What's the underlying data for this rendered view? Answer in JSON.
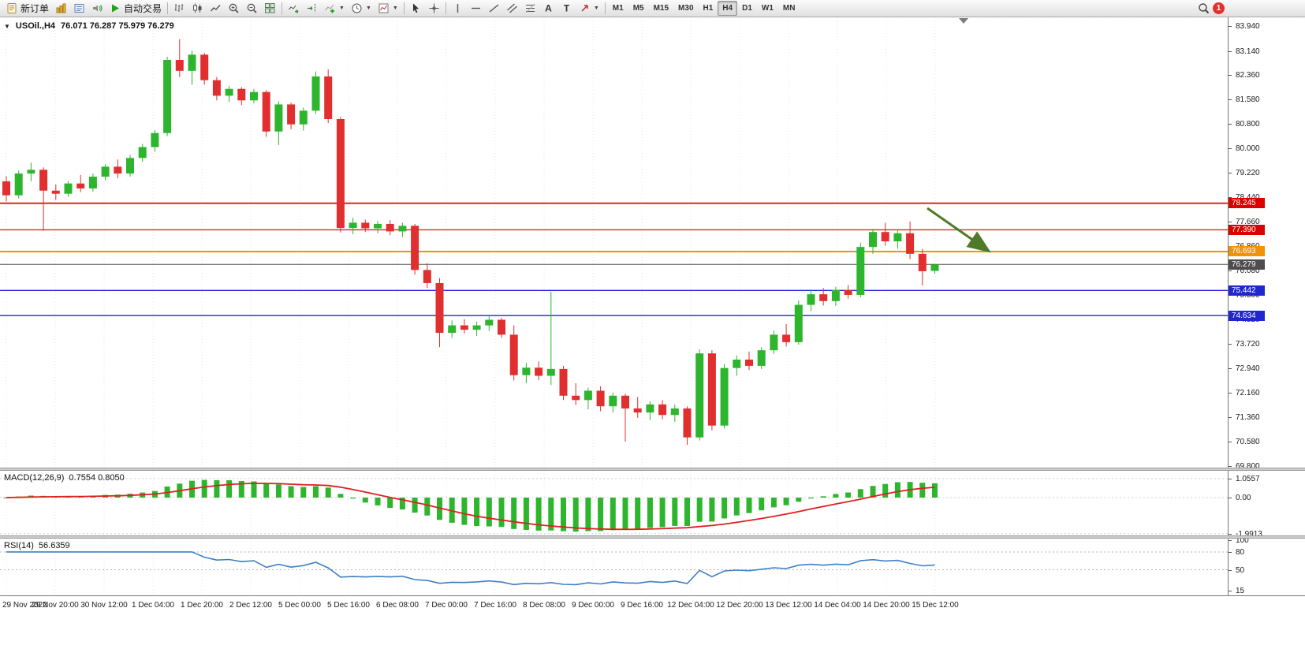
{
  "toolbar": {
    "new_order_label": "新订单",
    "auto_trading_label": "自动交易",
    "timeframes": [
      "M1",
      "M5",
      "M15",
      "M30",
      "H1",
      "H4",
      "D1",
      "W1",
      "MN"
    ],
    "active_timeframe": "H4",
    "notification_count": "1"
  },
  "chart": {
    "symbol_title": "USOil.,H4",
    "ohlc_text": "76.071 76.287 75.979 76.279",
    "price_axis": [
      "83.940",
      "83.140",
      "82.360",
      "81.580",
      "80.800",
      "80.000",
      "79.220",
      "78.440",
      "77.660",
      "76.860",
      "76.080",
      "75.300",
      "74.520",
      "73.720",
      "72.940",
      "72.160",
      "71.360",
      "70.580",
      "69.800"
    ],
    "time_axis": [
      "29 Nov 2022",
      "29 Nov 20:00",
      "30 Nov 12:00",
      "1 Dec 04:00",
      "1 Dec 20:00",
      "2 Dec 12:00",
      "5 Dec 00:00",
      "5 Dec 16:00",
      "6 Dec 08:00",
      "7 Dec 00:00",
      "7 Dec 16:00",
      "8 Dec 08:00",
      "9 Dec 00:00",
      "9 Dec 16:00",
      "12 Dec 04:00",
      "12 Dec 20:00",
      "13 Dec 12:00",
      "14 Dec 04:00",
      "14 Dec 20:00",
      "15 Dec 12:00"
    ],
    "levels": [
      {
        "price": 78.245,
        "label": "78.245",
        "line": "#e02525",
        "badge": "#dd0000",
        "width": 2
      },
      {
        "price": 77.39,
        "label": "77.390",
        "line": "#e02525",
        "badge": "#dd0000",
        "width": 1.4
      },
      {
        "price": 76.693,
        "label": "76.693",
        "line": "#f39200",
        "badge": "#ef9400",
        "width": 2
      },
      {
        "price": 75.442,
        "label": "75.442",
        "line": "#2326d8",
        "badge": "#2127cf",
        "width": 1.4
      },
      {
        "price": 74.634,
        "label": "74.634",
        "line": "#2326d8",
        "badge": "#2127cf",
        "width": 1.4
      }
    ],
    "current_price": {
      "price": 76.279,
      "label": "76.279",
      "line": "#555555",
      "badge": "#4d4d4d"
    },
    "colors": {
      "up": "#2eb52e",
      "down": "#e12f2f",
      "grid": "#e7e7e7",
      "arrow": "#4f7a28"
    },
    "candles": [
      [
        78.95,
        79.12,
        78.3,
        78.5
      ],
      [
        78.5,
        79.3,
        78.4,
        79.2
      ],
      [
        79.2,
        79.55,
        78.95,
        79.32
      ],
      [
        79.32,
        79.4,
        77.36,
        78.65
      ],
      [
        78.65,
        78.85,
        78.35,
        78.55
      ],
      [
        78.55,
        78.95,
        78.45,
        78.88
      ],
      [
        78.88,
        79.15,
        78.6,
        78.72
      ],
      [
        78.72,
        79.2,
        78.62,
        79.1
      ],
      [
        79.1,
        79.5,
        78.98,
        79.42
      ],
      [
        79.42,
        79.65,
        79.05,
        79.2
      ],
      [
        79.2,
        79.8,
        79.1,
        79.7
      ],
      [
        79.7,
        80.15,
        79.58,
        80.05
      ],
      [
        80.05,
        80.6,
        79.9,
        80.5
      ],
      [
        80.5,
        82.95,
        80.4,
        82.85
      ],
      [
        82.85,
        83.52,
        82.3,
        82.5
      ],
      [
        82.5,
        83.15,
        82.05,
        83.02
      ],
      [
        83.02,
        83.08,
        82.05,
        82.2
      ],
      [
        82.2,
        82.3,
        81.55,
        81.7
      ],
      [
        81.7,
        82.02,
        81.5,
        81.92
      ],
      [
        81.92,
        81.98,
        81.4,
        81.55
      ],
      [
        81.55,
        81.92,
        81.45,
        81.82
      ],
      [
        81.82,
        81.88,
        80.38,
        80.55
      ],
      [
        80.55,
        81.52,
        80.12,
        81.42
      ],
      [
        81.42,
        81.48,
        80.62,
        80.78
      ],
      [
        80.78,
        81.32,
        80.58,
        81.22
      ],
      [
        81.22,
        82.48,
        81.12,
        82.32
      ],
      [
        82.32,
        82.55,
        80.82,
        80.95
      ],
      [
        80.95,
        81.02,
        77.3,
        77.45
      ],
      [
        77.45,
        77.78,
        77.25,
        77.62
      ],
      [
        77.62,
        77.72,
        77.32,
        77.44
      ],
      [
        77.44,
        77.68,
        77.28,
        77.58
      ],
      [
        77.58,
        77.7,
        77.22,
        77.34
      ],
      [
        77.34,
        77.62,
        77.16,
        77.52
      ],
      [
        77.52,
        77.58,
        75.95,
        76.1
      ],
      [
        76.1,
        76.32,
        75.52,
        75.68
      ],
      [
        75.68,
        75.84,
        73.62,
        74.08
      ],
      [
        74.08,
        74.48,
        73.92,
        74.32
      ],
      [
        74.32,
        74.52,
        74.06,
        74.18
      ],
      [
        74.18,
        74.44,
        73.98,
        74.32
      ],
      [
        74.32,
        74.62,
        74.14,
        74.5
      ],
      [
        74.5,
        74.56,
        73.92,
        74.02
      ],
      [
        74.02,
        74.32,
        72.55,
        72.72
      ],
      [
        72.72,
        73.12,
        72.46,
        72.96
      ],
      [
        72.96,
        73.16,
        72.56,
        72.7
      ],
      [
        72.7,
        75.4,
        72.4,
        72.92
      ],
      [
        72.92,
        73.02,
        71.92,
        72.06
      ],
      [
        72.06,
        72.46,
        71.76,
        71.92
      ],
      [
        71.92,
        72.32,
        71.62,
        72.22
      ],
      [
        72.22,
        72.36,
        71.56,
        71.72
      ],
      [
        71.72,
        72.16,
        71.52,
        72.06
      ],
      [
        72.06,
        72.12,
        70.58,
        71.65
      ],
      [
        71.65,
        72.02,
        71.35,
        71.52
      ],
      [
        71.52,
        71.88,
        71.28,
        71.78
      ],
      [
        71.78,
        71.92,
        71.3,
        71.44
      ],
      [
        71.44,
        71.78,
        71.22,
        71.65
      ],
      [
        71.65,
        71.72,
        70.48,
        70.72
      ],
      [
        70.72,
        73.55,
        70.62,
        73.42
      ],
      [
        73.42,
        73.52,
        70.95,
        71.1
      ],
      [
        71.1,
        73.08,
        71.0,
        72.95
      ],
      [
        72.95,
        73.35,
        72.7,
        73.22
      ],
      [
        73.22,
        73.48,
        72.88,
        73.02
      ],
      [
        73.02,
        73.62,
        72.92,
        73.52
      ],
      [
        73.52,
        74.15,
        73.4,
        74.02
      ],
      [
        74.02,
        74.36,
        73.64,
        73.78
      ],
      [
        73.78,
        75.12,
        73.7,
        74.98
      ],
      [
        74.98,
        75.48,
        74.78,
        75.32
      ],
      [
        75.32,
        75.52,
        74.96,
        75.1
      ],
      [
        75.1,
        75.56,
        74.95,
        75.46
      ],
      [
        75.46,
        75.62,
        75.18,
        75.3
      ],
      [
        75.3,
        76.98,
        75.22,
        76.84
      ],
      [
        76.84,
        77.42,
        76.62,
        77.32
      ],
      [
        77.32,
        77.62,
        76.88,
        77.02
      ],
      [
        77.02,
        77.38,
        76.78,
        77.28
      ],
      [
        77.28,
        77.66,
        76.45,
        76.62
      ],
      [
        76.62,
        76.78,
        75.6,
        76.06
      ],
      [
        76.071,
        76.287,
        75.979,
        76.279
      ]
    ]
  },
  "macd": {
    "name": "MACD(12,26,9)",
    "values": "0.7554 0.8050",
    "axis": [
      "1.0557",
      "0.00",
      "-1.9913"
    ],
    "axis_values": [
      1.0557,
      0,
      -1.9913
    ],
    "bar_color": "#2eb52e",
    "signal_color": "#e02020"
  },
  "rsi": {
    "name": "RSI(14)",
    "value": "56.6359",
    "axis": [
      "100",
      "80",
      "50",
      "15"
    ],
    "axis_values": [
      100,
      80,
      50,
      15
    ],
    "levels": [
      80,
      50
    ],
    "line_color": "#3f7fc6"
  }
}
